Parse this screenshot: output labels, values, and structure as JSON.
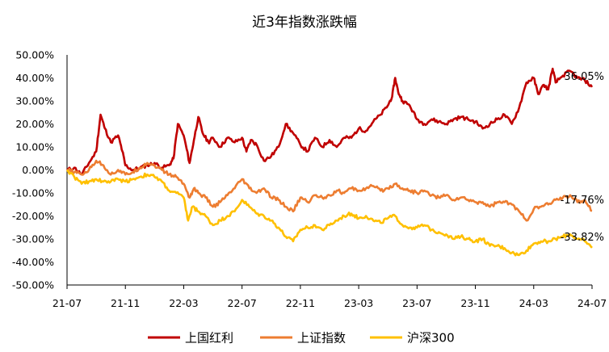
{
  "chart_data": {
    "type": "line",
    "title": "近3年指数涨跌幅",
    "y_unit": "%",
    "ylim": [
      -50,
      50
    ],
    "y_ticks": [
      "50.00%",
      "40.00%",
      "30.00%",
      "20.00%",
      "10.00%",
      "0.00%",
      "-10.00%",
      "-20.00%",
      "-30.00%",
      "-40.00%",
      "-50.00%"
    ],
    "x_ticks": [
      "21-07",
      "21-11",
      "22-03",
      "22-07",
      "22-11",
      "23-03",
      "23-07",
      "23-11",
      "24-03",
      "24-07"
    ],
    "x_range_months": [
      0,
      36
    ],
    "grid": false,
    "legend_position": "bottom",
    "series": [
      {
        "name": "上国红利",
        "color": "#C00000",
        "end_label": "36.05%",
        "points": [
          [
            0,
            0
          ],
          [
            0.5,
            1
          ],
          [
            1,
            -2
          ],
          [
            1.5,
            3
          ],
          [
            2,
            8
          ],
          [
            2.3,
            24
          ],
          [
            2.6,
            18
          ],
          [
            3,
            12
          ],
          [
            3.5,
            15
          ],
          [
            3.8,
            8
          ],
          [
            4,
            2
          ],
          [
            4.5,
            0
          ],
          [
            5,
            1
          ],
          [
            5.5,
            2
          ],
          [
            6,
            3
          ],
          [
            6.5,
            1
          ],
          [
            7,
            2
          ],
          [
            7.3,
            5
          ],
          [
            7.6,
            20
          ],
          [
            8,
            15
          ],
          [
            8.4,
            3
          ],
          [
            8.7,
            13
          ],
          [
            9,
            23
          ],
          [
            9.3,
            16
          ],
          [
            9.7,
            12
          ],
          [
            10,
            14
          ],
          [
            10.5,
            10
          ],
          [
            11,
            14
          ],
          [
            11.5,
            12
          ],
          [
            12,
            14
          ],
          [
            12.3,
            8
          ],
          [
            12.6,
            13
          ],
          [
            13,
            11
          ],
          [
            13.5,
            4
          ],
          [
            14,
            6
          ],
          [
            14.5,
            10
          ],
          [
            15,
            20
          ],
          [
            15.5,
            16
          ],
          [
            16,
            11
          ],
          [
            16.5,
            8
          ],
          [
            17,
            14
          ],
          [
            17.5,
            10
          ],
          [
            18,
            13
          ],
          [
            18.5,
            10
          ],
          [
            19,
            14
          ],
          [
            19.5,
            14
          ],
          [
            20,
            18
          ],
          [
            20.5,
            17
          ],
          [
            21,
            21
          ],
          [
            21.5,
            24
          ],
          [
            22,
            28
          ],
          [
            22.3,
            32
          ],
          [
            22.5,
            40
          ],
          [
            22.7,
            34
          ],
          [
            23,
            30
          ],
          [
            23.5,
            28
          ],
          [
            24,
            22
          ],
          [
            24.5,
            20
          ],
          [
            25,
            22
          ],
          [
            25.5,
            21
          ],
          [
            26,
            20
          ],
          [
            26.5,
            22
          ],
          [
            27,
            23
          ],
          [
            27.5,
            22
          ],
          [
            28,
            21
          ],
          [
            28.5,
            18
          ],
          [
            29,
            20
          ],
          [
            29.5,
            22
          ],
          [
            30,
            24
          ],
          [
            30.5,
            20
          ],
          [
            31,
            27
          ],
          [
            31.5,
            38
          ],
          [
            32,
            40
          ],
          [
            32.3,
            33
          ],
          [
            32.7,
            37
          ],
          [
            33,
            35
          ],
          [
            33.3,
            44
          ],
          [
            33.5,
            38
          ],
          [
            34,
            41
          ],
          [
            34.5,
            43
          ],
          [
            35,
            40
          ],
          [
            35.5,
            39
          ],
          [
            36,
            36.05
          ]
        ]
      },
      {
        "name": "上证指数",
        "color": "#ED7D31",
        "end_label": "-17.76%",
        "points": [
          [
            0,
            0
          ],
          [
            0.5,
            -1
          ],
          [
            1,
            -2
          ],
          [
            1.5,
            0
          ],
          [
            2,
            4
          ],
          [
            2.5,
            2
          ],
          [
            3,
            -2
          ],
          [
            3.5,
            0
          ],
          [
            4,
            -2
          ],
          [
            4.5,
            -1
          ],
          [
            5,
            1
          ],
          [
            5.5,
            3
          ],
          [
            6,
            2
          ],
          [
            6.5,
            0
          ],
          [
            7,
            -2
          ],
          [
            7.5,
            -3
          ],
          [
            8,
            -6
          ],
          [
            8.4,
            -12
          ],
          [
            8.7,
            -8
          ],
          [
            9,
            -10
          ],
          [
            9.5,
            -12
          ],
          [
            10,
            -16
          ],
          [
            10.5,
            -14
          ],
          [
            11,
            -11
          ],
          [
            11.5,
            -8
          ],
          [
            12,
            -4
          ],
          [
            12.5,
            -8
          ],
          [
            13,
            -10
          ],
          [
            13.5,
            -8
          ],
          [
            14,
            -12
          ],
          [
            14.5,
            -13
          ],
          [
            15,
            -16
          ],
          [
            15.5,
            -18
          ],
          [
            16,
            -12
          ],
          [
            16.5,
            -14
          ],
          [
            17,
            -11
          ],
          [
            17.5,
            -12
          ],
          [
            18,
            -11
          ],
          [
            18.5,
            -9
          ],
          [
            19,
            -10
          ],
          [
            19.5,
            -8
          ],
          [
            20,
            -9
          ],
          [
            20.5,
            -8
          ],
          [
            21,
            -7
          ],
          [
            21.5,
            -9
          ],
          [
            22,
            -8
          ],
          [
            22.5,
            -6
          ],
          [
            23,
            -8
          ],
          [
            23.5,
            -9
          ],
          [
            24,
            -10
          ],
          [
            24.5,
            -9
          ],
          [
            25,
            -11
          ],
          [
            25.5,
            -12
          ],
          [
            26,
            -11
          ],
          [
            26.5,
            -13
          ],
          [
            27,
            -12
          ],
          [
            27.5,
            -13
          ],
          [
            28,
            -14
          ],
          [
            28.5,
            -14
          ],
          [
            29,
            -16
          ],
          [
            29.5,
            -14
          ],
          [
            30,
            -14
          ],
          [
            30.5,
            -15
          ],
          [
            31,
            -18
          ],
          [
            31.5,
            -22
          ],
          [
            32,
            -17
          ],
          [
            32.5,
            -16
          ],
          [
            33,
            -15
          ],
          [
            33.5,
            -13
          ],
          [
            34,
            -12
          ],
          [
            34.5,
            -11
          ],
          [
            35,
            -14
          ],
          [
            35.5,
            -13
          ],
          [
            36,
            -17.76
          ]
        ]
      },
      {
        "name": "沪深300",
        "color": "#FFC000",
        "end_label": "-33.82%",
        "points": [
          [
            0,
            0
          ],
          [
            0.5,
            -3
          ],
          [
            1,
            -6
          ],
          [
            1.5,
            -5
          ],
          [
            2,
            -4
          ],
          [
            2.5,
            -5
          ],
          [
            3,
            -5
          ],
          [
            3.5,
            -4
          ],
          [
            4,
            -5
          ],
          [
            4.5,
            -4
          ],
          [
            5,
            -3
          ],
          [
            5.5,
            -2
          ],
          [
            6,
            -3
          ],
          [
            6.5,
            -5
          ],
          [
            7,
            -9
          ],
          [
            7.5,
            -10
          ],
          [
            8,
            -12
          ],
          [
            8.3,
            -22
          ],
          [
            8.6,
            -16
          ],
          [
            9,
            -18
          ],
          [
            9.5,
            -20
          ],
          [
            10,
            -24
          ],
          [
            10.5,
            -22
          ],
          [
            11,
            -20
          ],
          [
            11.5,
            -18
          ],
          [
            12,
            -13
          ],
          [
            12.5,
            -16
          ],
          [
            13,
            -19
          ],
          [
            13.5,
            -20
          ],
          [
            14,
            -22
          ],
          [
            14.5,
            -25
          ],
          [
            15,
            -29
          ],
          [
            15.5,
            -31
          ],
          [
            16,
            -26
          ],
          [
            16.5,
            -25
          ],
          [
            17,
            -24
          ],
          [
            17.5,
            -26
          ],
          [
            18,
            -24
          ],
          [
            18.5,
            -22
          ],
          [
            19,
            -20
          ],
          [
            19.5,
            -19
          ],
          [
            20,
            -21
          ],
          [
            20.5,
            -20
          ],
          [
            21,
            -22
          ],
          [
            21.5,
            -23
          ],
          [
            22,
            -21
          ],
          [
            22.5,
            -20
          ],
          [
            23,
            -24
          ],
          [
            23.5,
            -25
          ],
          [
            24,
            -25
          ],
          [
            24.5,
            -24
          ],
          [
            25,
            -26
          ],
          [
            25.5,
            -27
          ],
          [
            26,
            -28
          ],
          [
            26.5,
            -30
          ],
          [
            27,
            -29
          ],
          [
            27.5,
            -30
          ],
          [
            28,
            -31
          ],
          [
            28.5,
            -30
          ],
          [
            29,
            -33
          ],
          [
            29.5,
            -33
          ],
          [
            30,
            -34
          ],
          [
            30.5,
            -36
          ],
          [
            31,
            -37
          ],
          [
            31.5,
            -35
          ],
          [
            32,
            -32
          ],
          [
            32.5,
            -31
          ],
          [
            33,
            -31
          ],
          [
            33.5,
            -30
          ],
          [
            34,
            -29
          ],
          [
            34.5,
            -28
          ],
          [
            35,
            -30
          ],
          [
            35.5,
            -31
          ],
          [
            36,
            -33.82
          ]
        ]
      }
    ]
  }
}
